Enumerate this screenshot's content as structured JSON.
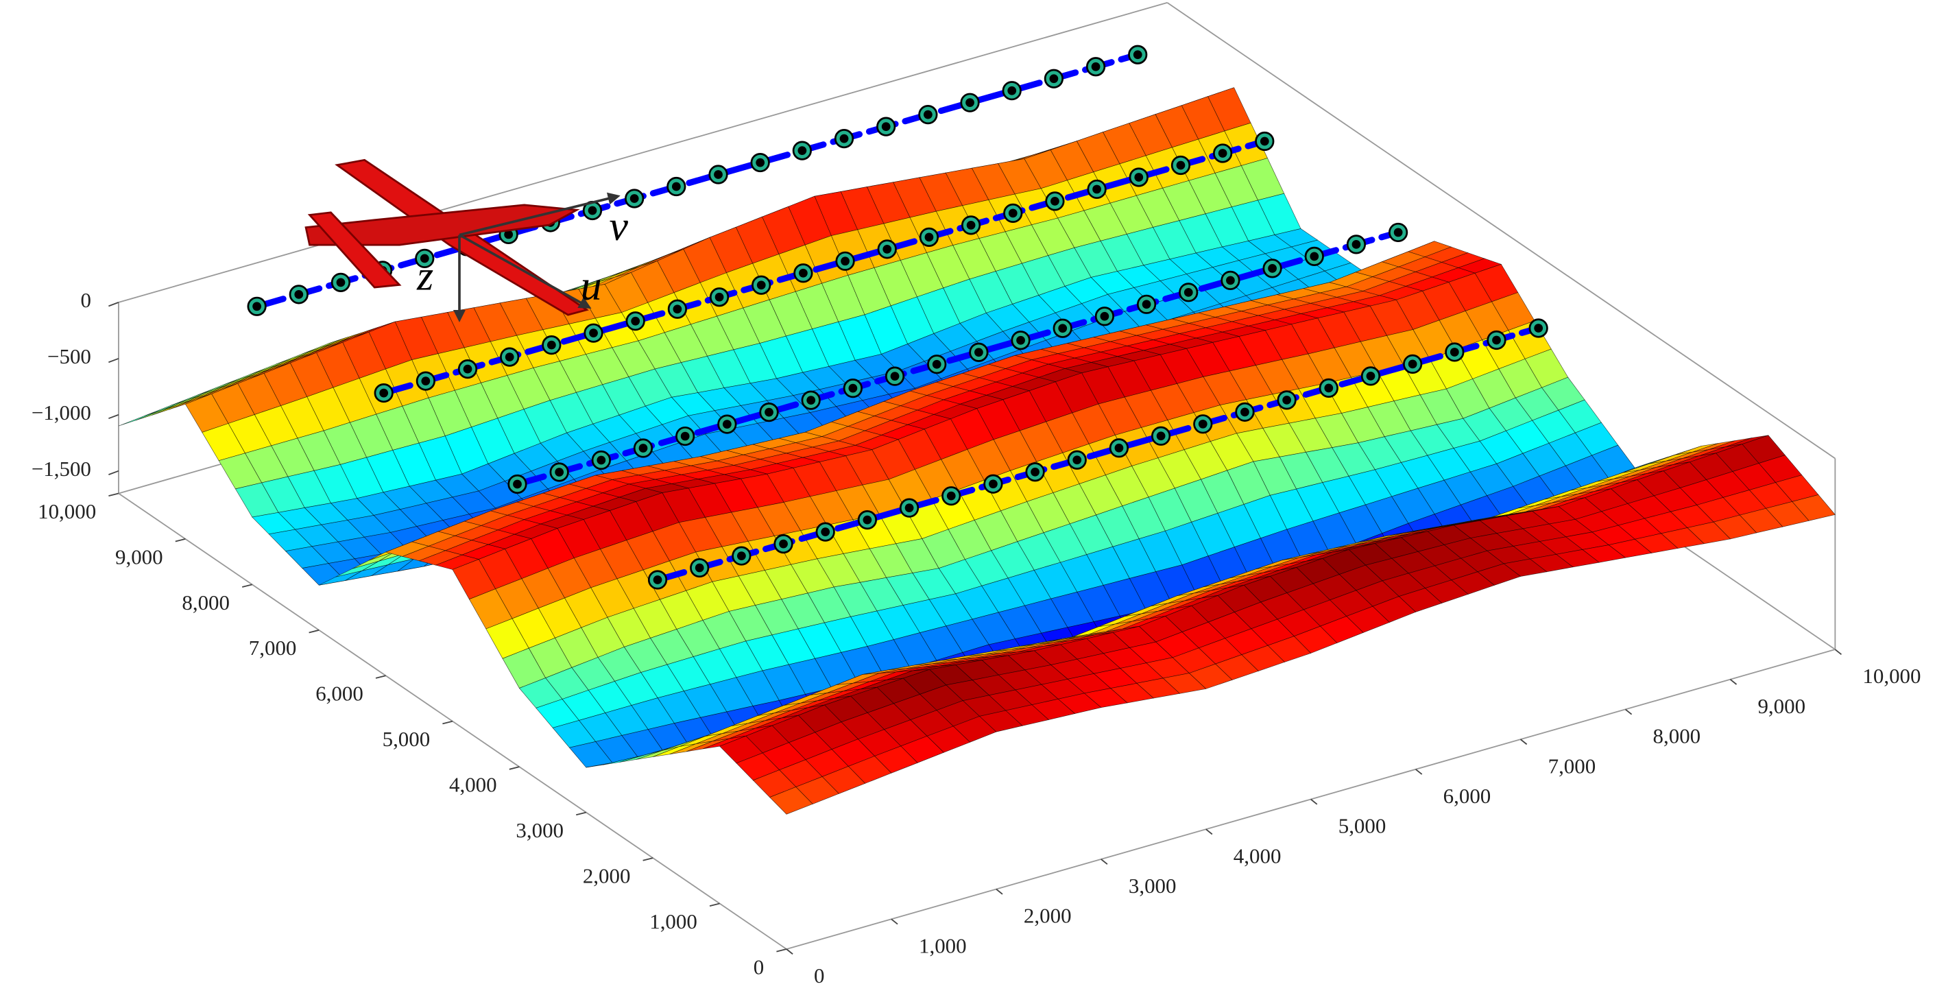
{
  "chart_data": {
    "type": "surface3d",
    "xlim": [
      0,
      10000
    ],
    "ylim": [
      0,
      10000
    ],
    "zlim": [
      -1700,
      0
    ],
    "xticks": [
      0,
      {
        "value": 1000,
        "label": "1,000"
      },
      {
        "value": 2000,
        "label": "2,000"
      },
      {
        "value": 3000,
        "label": "3,000"
      },
      {
        "value": 4000,
        "label": "4,000"
      },
      {
        "value": 5000,
        "label": "5,000"
      },
      {
        "value": 6000,
        "label": "6,000"
      },
      {
        "value": 7000,
        "label": "7,000"
      },
      {
        "value": 8000,
        "label": "8,000"
      },
      {
        "value": 9000,
        "label": "9,000"
      },
      {
        "value": 10000,
        "label": "10,000"
      }
    ],
    "yticks": [
      0,
      {
        "value": 1000,
        "label": "1,000"
      },
      {
        "value": 2000,
        "label": "2,000"
      },
      {
        "value": 3000,
        "label": "3,000"
      },
      {
        "value": 4000,
        "label": "4,000"
      },
      {
        "value": 5000,
        "label": "5,000"
      },
      {
        "value": 6000,
        "label": "6,000"
      },
      {
        "value": 7000,
        "label": "7,000"
      },
      {
        "value": 8000,
        "label": "8,000"
      },
      {
        "value": 9000,
        "label": "9,000"
      },
      {
        "value": 10000,
        "label": "10,000"
      }
    ],
    "zticks": [
      0,
      {
        "value": -500,
        "label": "−500"
      },
      {
        "value": -1000,
        "label": "−1,000"
      },
      {
        "value": -1500,
        "label": "−1,500"
      }
    ],
    "grid_x": [
      0,
      1000,
      2000,
      3000,
      4000,
      5000,
      6000,
      7000,
      8000,
      9000,
      10000
    ],
    "grid_y": [
      0,
      1000,
      2000,
      3000,
      4000,
      5000,
      6000,
      7000,
      8000,
      9000,
      10000
    ],
    "z": [
      [
        -500,
        -400,
        -300,
        -350,
        -450,
        -400,
        -300,
        -250,
        -350,
        -450,
        -500
      ],
      [
        -300,
        -200,
        -150,
        -250,
        -300,
        -200,
        -150,
        -200,
        -300,
        -250,
        -200
      ],
      [
        -800,
        -700,
        -600,
        -700,
        -800,
        -700,
        -650,
        -700,
        -800,
        -750,
        -700
      ],
      [
        -1300,
        -1400,
        -1500,
        -1550,
        -1500,
        -1600,
        -1700,
        -1650,
        -1500,
        -1400,
        -1300
      ],
      [
        -1000,
        -900,
        -850,
        -900,
        -1000,
        -950,
        -900,
        -850,
        -950,
        -1000,
        -900
      ],
      [
        -350,
        -250,
        -200,
        -300,
        -350,
        -250,
        -200,
        -250,
        -300,
        -350,
        -300
      ],
      [
        -600,
        -500,
        -450,
        -550,
        -600,
        -500,
        -450,
        -500,
        -550,
        -600,
        -500
      ],
      [
        -1300,
        -1400,
        -1450,
        -1400,
        -1350,
        -1400,
        -1450,
        -1400,
        -1300,
        -1250,
        -1200
      ],
      [
        -1100,
        -1200,
        -1250,
        -1150,
        -1100,
        -1200,
        -1250,
        -1150,
        -1100,
        -1150,
        -1200
      ],
      [
        -500,
        -400,
        -300,
        -400,
        -500,
        -350,
        -250,
        -350,
        -450,
        -400,
        -350
      ],
      [
        -1100,
        -1000,
        -900,
        -950,
        -1050,
        -1000,
        -900,
        -950,
        -1000,
        -1050,
        -1000
      ]
    ],
    "colormap": "jet",
    "edge_color": "#000000",
    "paths": [
      {
        "color": "#0000ff",
        "marker_color": "#22b08c",
        "y": 9500,
        "z": -100,
        "x": [
          1000,
          1400,
          1800,
          2200,
          2600,
          3000,
          3400,
          3800,
          4200,
          4600,
          5000,
          5400,
          5800,
          6200,
          6600,
          7000,
          7400,
          7800,
          8200,
          8600,
          9000,
          9400
        ]
      },
      {
        "color": "#0000ff",
        "marker_color": "#22b08c",
        "y": 7600,
        "z": -100,
        "x": [
          1000,
          1400,
          1800,
          2200,
          2600,
          3000,
          3400,
          3800,
          4200,
          4600,
          5000,
          5400,
          5800,
          6200,
          6600,
          7000,
          7400,
          7800,
          8200,
          8600,
          9000,
          9400
        ]
      },
      {
        "color": "#0000ff",
        "marker_color": "#22b08c",
        "y": 5600,
        "z": -100,
        "x": [
          1000,
          1400,
          1800,
          2200,
          2600,
          3000,
          3400,
          3800,
          4200,
          4600,
          5000,
          5400,
          5800,
          6200,
          6600,
          7000,
          7400,
          7800,
          8200,
          8600,
          9000,
          9400
        ]
      },
      {
        "color": "#0000ff",
        "marker_color": "#22b08c",
        "y": 3500,
        "z": -100,
        "x": [
          1000,
          1400,
          1800,
          2200,
          2600,
          3000,
          3400,
          3800,
          4200,
          4600,
          5000,
          5400,
          5800,
          6200,
          6600,
          7000,
          7400,
          7800,
          8200,
          8600,
          9000,
          9400
        ]
      }
    ],
    "frame_labels": [
      "v",
      "u",
      "z"
    ]
  }
}
